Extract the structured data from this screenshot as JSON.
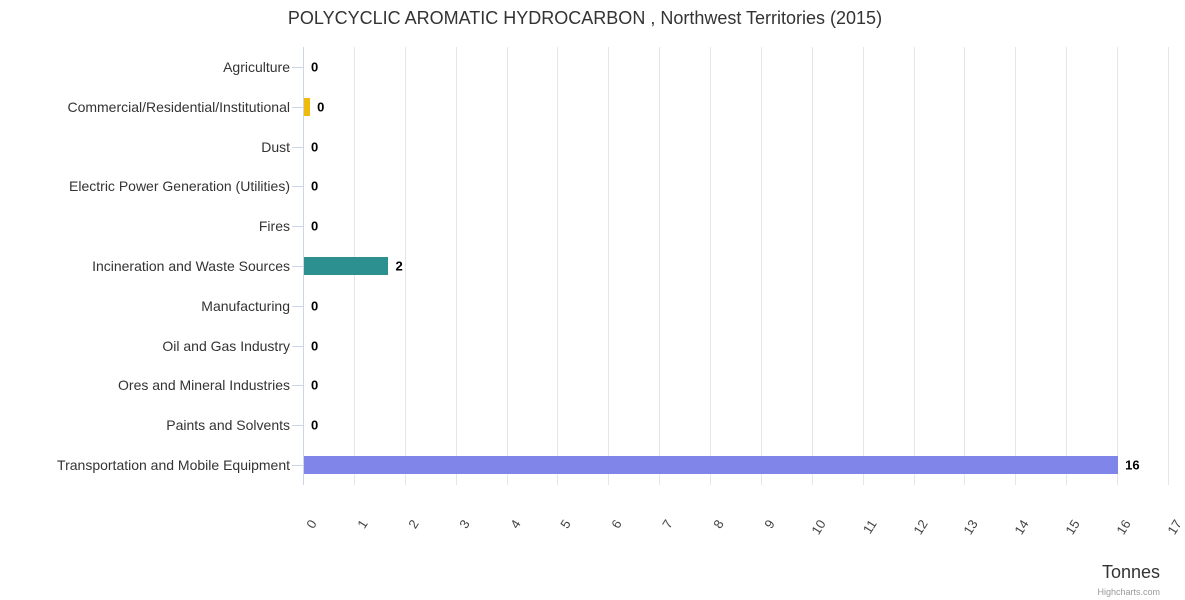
{
  "title": "POLYCYCLIC AROMATIC HYDROCARBON , Northwest Territories (2015)",
  "axis_title": "Tonnes",
  "credits": "Highcharts.com",
  "colors": {
    "grid_line": "#e6e6e6",
    "axis_line": "#ccd6eb",
    "title_text": "#333333",
    "category_text": "#333333",
    "tick_text": "#444444",
    "data_label_text": "#000000",
    "credits_text": "#999999"
  },
  "chart_data": {
    "type": "bar",
    "orientation": "horizontal",
    "title": "POLYCYCLIC AROMATIC HYDROCARBON , Northwest Territories (2015)",
    "categories": [
      "Agriculture",
      "Commercial/Residential/Institutional",
      "Dust",
      "Electric Power Generation (Utilities)",
      "Fires",
      "Incineration and Waste Sources",
      "Manufacturing",
      "Oil and Gas Industry",
      "Ores and Mineral Industries",
      "Paints and Solvents",
      "Transportation and Mobile Equipment"
    ],
    "values": [
      0,
      0.12,
      0,
      0,
      0,
      1.66,
      0,
      0,
      0,
      0,
      16
    ],
    "data_labels": [
      "0",
      "0",
      "0",
      "0",
      "0",
      "2",
      "0",
      "0",
      "0",
      "0",
      "16"
    ],
    "bar_colors": [
      "#7cb5ec",
      "#edbc0e",
      "#7cb5ec",
      "#7cb5ec",
      "#7cb5ec",
      "#2b908f",
      "#7cb5ec",
      "#7cb5ec",
      "#7cb5ec",
      "#7cb5ec",
      "#8085e9"
    ],
    "xlabel": "Tonnes",
    "ylabel": "",
    "xlim": [
      0,
      17
    ],
    "x_ticks": [
      0,
      1,
      2,
      3,
      4,
      5,
      6,
      7,
      8,
      9,
      10,
      11,
      12,
      13,
      14,
      15,
      16,
      17
    ],
    "grid": true,
    "legend": false
  }
}
